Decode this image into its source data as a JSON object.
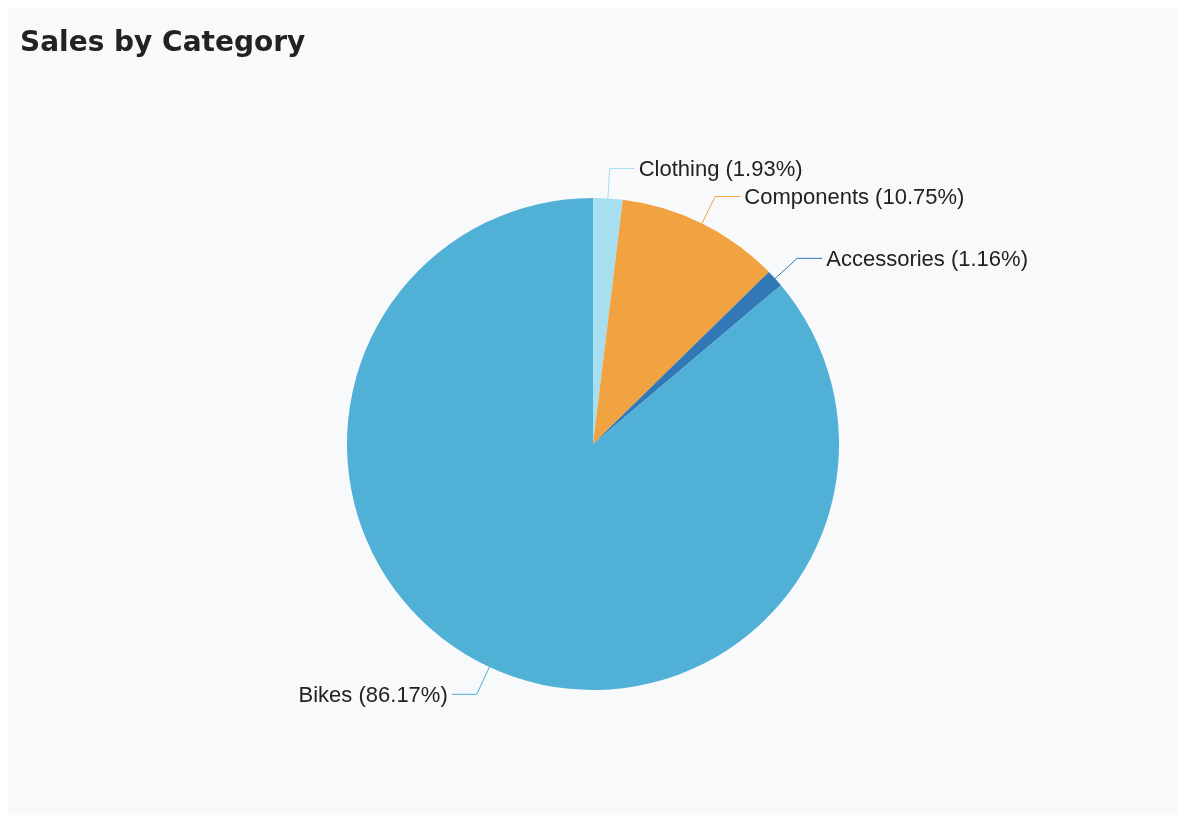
{
  "chart_data": {
    "type": "pie",
    "title": "Sales by Category",
    "categories": [
      "Clothing",
      "Components",
      "Accessories",
      "Bikes"
    ],
    "values": [
      1.93,
      10.75,
      1.16,
      86.17
    ],
    "colors": [
      "#a5dff0",
      "#f0a340",
      "#3378b6",
      "#50b0d6"
    ],
    "value_labels": [
      "(1.93%)",
      "(10.75%)",
      "(1.16%)",
      "(86.17%)"
    ]
  }
}
